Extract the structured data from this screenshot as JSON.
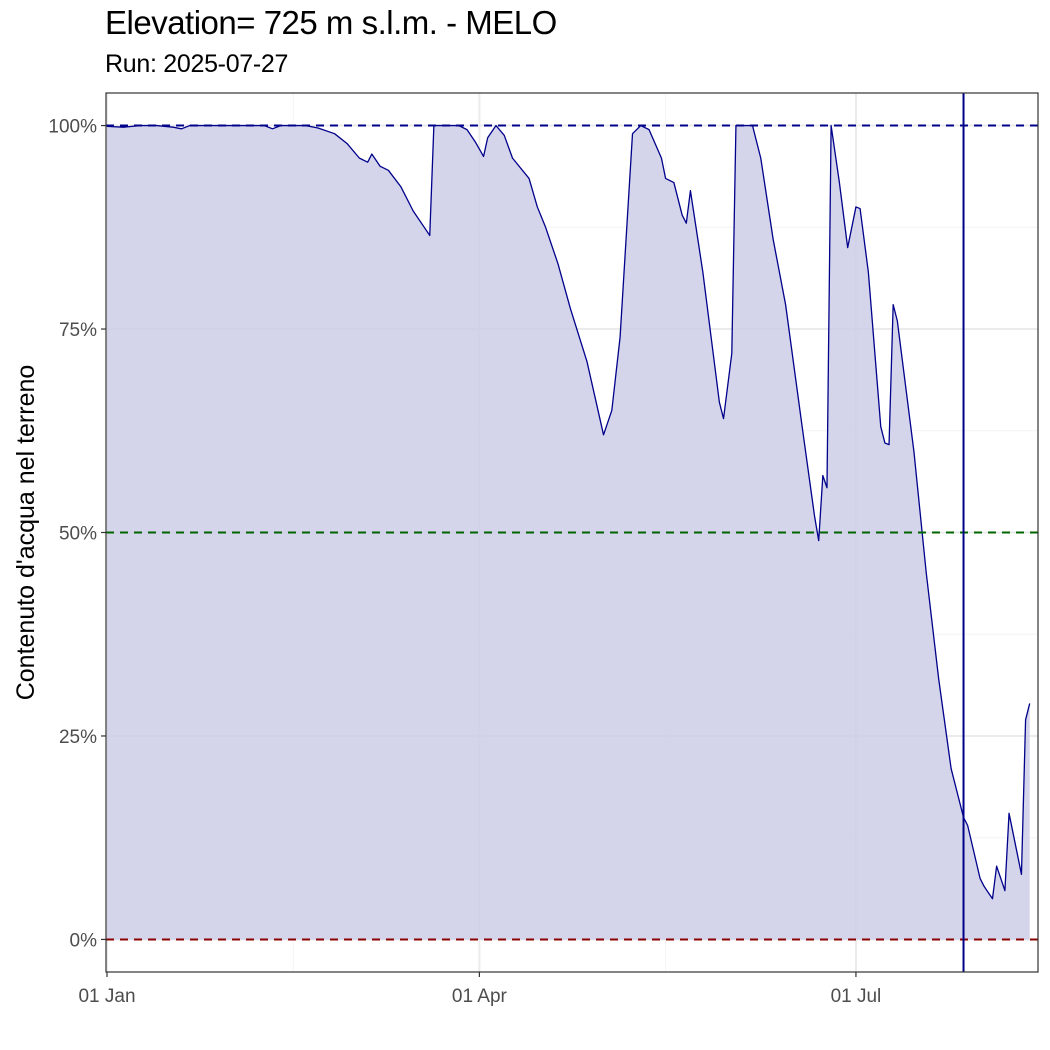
{
  "header": {
    "title": "Elevation= 725 m s.l.m. - MELO",
    "subtitle": "Run: 2025-07-27"
  },
  "chart_data": {
    "type": "area",
    "title": "Elevation= 725 m s.l.m. - MELO",
    "subtitle": "Run: 2025-07-27",
    "xlabel": "",
    "ylabel": "Contenuto d'acqua nel terreno",
    "x_type": "date",
    "xlim": [
      "2025-01-01",
      "2025-08-14"
    ],
    "ylim": [
      -0.04,
      1.04
    ],
    "x_ticks": [
      {
        "date": "2025-01-01",
        "label": "01 Jan"
      },
      {
        "date": "2025-04-01",
        "label": "01 Apr"
      },
      {
        "date": "2025-07-01",
        "label": "01 Jul"
      }
    ],
    "x_minor_gridlines": [
      "2025-02-15",
      "2025-05-16",
      "2025-08-15"
    ],
    "y_ticks": [
      {
        "value": 0,
        "label": "0%"
      },
      {
        "value": 0.25,
        "label": "25%"
      },
      {
        "value": 0.5,
        "label": "50%"
      },
      {
        "value": 0.75,
        "label": "75%"
      },
      {
        "value": 1,
        "label": "100%"
      }
    ],
    "grid": true,
    "legend": "none",
    "colors": {
      "line": "#00008b",
      "fill": "#cccce8",
      "ref_100": "#00008b",
      "ref_50": "#006400",
      "ref_0": "#8b0000",
      "run_line": "#00008b",
      "grid": "#ebebeb",
      "panel_border": "#333333"
    },
    "reference_lines": [
      {
        "value": 1.0,
        "color": "#00008b",
        "style": "dashed"
      },
      {
        "value": 0.5,
        "color": "#006400",
        "style": "dashed"
      },
      {
        "value": 0.0,
        "color": "#8b0000",
        "style": "dashed"
      }
    ],
    "vertical_line": {
      "date": "2025-07-27",
      "color": "#00008b"
    },
    "series": [
      {
        "points": [
          [
            "2025-01-01",
            0.999
          ],
          [
            "2025-01-05",
            0.998
          ],
          [
            "2025-01-09",
            1.0
          ],
          [
            "2025-01-13",
            1.0
          ],
          [
            "2025-01-17",
            0.998
          ],
          [
            "2025-01-19",
            0.996
          ],
          [
            "2025-01-21",
            1.0
          ],
          [
            "2025-01-25",
            1.0
          ],
          [
            "2025-01-30",
            1.0
          ],
          [
            "2025-02-04",
            1.0
          ],
          [
            "2025-02-08",
            1.0
          ],
          [
            "2025-02-10",
            0.996
          ],
          [
            "2025-02-12",
            1.0
          ],
          [
            "2025-02-18",
            1.0
          ],
          [
            "2025-02-21",
            0.997
          ],
          [
            "2025-02-25",
            0.99
          ],
          [
            "2025-02-28",
            0.978
          ],
          [
            "2025-03-03",
            0.96
          ],
          [
            "2025-03-05",
            0.955
          ],
          [
            "2025-03-06",
            0.965
          ],
          [
            "2025-03-08",
            0.95
          ],
          [
            "2025-03-10",
            0.945
          ],
          [
            "2025-03-13",
            0.925
          ],
          [
            "2025-03-16",
            0.895
          ],
          [
            "2025-03-20",
            0.865
          ],
          [
            "2025-03-21",
            1.0
          ],
          [
            "2025-03-27",
            1.0
          ],
          [
            "2025-03-29",
            0.995
          ],
          [
            "2025-03-31",
            0.98
          ],
          [
            "2025-04-02",
            0.962
          ],
          [
            "2025-04-03",
            0.985
          ],
          [
            "2025-04-05",
            1.0
          ],
          [
            "2025-04-07",
            0.988
          ],
          [
            "2025-04-09",
            0.96
          ],
          [
            "2025-04-13",
            0.935
          ],
          [
            "2025-04-15",
            0.9
          ],
          [
            "2025-04-17",
            0.875
          ],
          [
            "2025-04-20",
            0.83
          ],
          [
            "2025-04-23",
            0.775
          ],
          [
            "2025-04-27",
            0.71
          ],
          [
            "2025-05-01",
            0.62
          ],
          [
            "2025-05-03",
            0.65
          ],
          [
            "2025-05-05",
            0.74
          ],
          [
            "2025-05-08",
            0.99
          ],
          [
            "2025-05-10",
            1.0
          ],
          [
            "2025-05-12",
            0.995
          ],
          [
            "2025-05-15",
            0.96
          ],
          [
            "2025-05-16",
            0.935
          ],
          [
            "2025-05-18",
            0.93
          ],
          [
            "2025-05-20",
            0.89
          ],
          [
            "2025-05-21",
            0.88
          ],
          [
            "2025-05-22",
            0.92
          ],
          [
            "2025-05-25",
            0.82
          ],
          [
            "2025-05-29",
            0.66
          ],
          [
            "2025-05-30",
            0.64
          ],
          [
            "2025-06-01",
            0.72
          ],
          [
            "2025-06-02",
            1.0
          ],
          [
            "2025-06-06",
            1.0
          ],
          [
            "2025-06-08",
            0.96
          ],
          [
            "2025-06-11",
            0.86
          ],
          [
            "2025-06-14",
            0.78
          ],
          [
            "2025-06-18",
            0.63
          ],
          [
            "2025-06-21",
            0.52
          ],
          [
            "2025-06-22",
            0.49
          ],
          [
            "2025-06-23",
            0.57
          ],
          [
            "2025-06-24",
            0.555
          ],
          [
            "2025-06-25",
            1.0
          ],
          [
            "2025-06-27",
            0.93
          ],
          [
            "2025-06-29",
            0.85
          ],
          [
            "2025-07-01",
            0.9
          ],
          [
            "2025-07-02",
            0.898
          ],
          [
            "2025-07-04",
            0.82
          ],
          [
            "2025-07-07",
            0.63
          ],
          [
            "2025-07-08",
            0.61
          ],
          [
            "2025-07-09",
            0.608
          ],
          [
            "2025-07-10",
            0.78
          ],
          [
            "2025-07-11",
            0.76
          ],
          [
            "2025-07-15",
            0.6
          ],
          [
            "2025-07-18",
            0.45
          ],
          [
            "2025-07-21",
            0.32
          ],
          [
            "2025-07-24",
            0.21
          ],
          [
            "2025-07-27",
            0.15
          ],
          [
            "2025-07-28",
            0.14
          ],
          [
            "2025-07-31",
            0.075
          ],
          [
            "2025-08-01",
            0.065
          ],
          [
            "2025-08-03",
            0.05
          ],
          [
            "2025-08-04",
            0.09
          ],
          [
            "2025-08-06",
            0.06
          ],
          [
            "2025-08-07",
            0.155
          ],
          [
            "2025-08-10",
            0.08
          ],
          [
            "2025-08-11",
            0.27
          ],
          [
            "2025-08-12",
            0.29
          ]
        ]
      }
    ]
  }
}
